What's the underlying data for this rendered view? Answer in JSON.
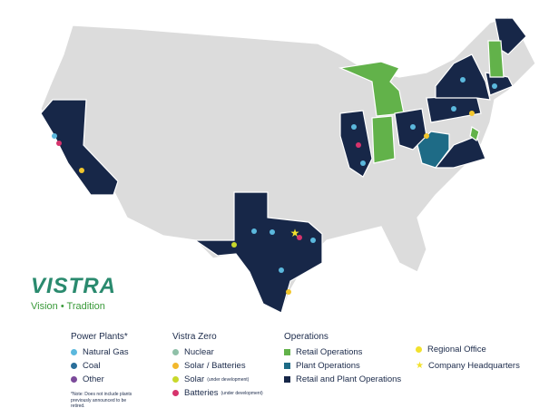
{
  "brand": {
    "name": "VISTRA",
    "tagline": "Vision • Tradition"
  },
  "legend": {
    "power_plants": {
      "title": "Power Plants*",
      "items": [
        "Natural Gas",
        "Coal",
        "Other"
      ],
      "note": "*Note: Does not include plants previously announced to be retired."
    },
    "vistra_zero": {
      "title": "Vistra Zero",
      "items": [
        {
          "label": "Nuclear"
        },
        {
          "label": "Solar / Batteries"
        },
        {
          "label": "Solar",
          "sublabel": "(under development)"
        },
        {
          "label": "Batteries",
          "sublabel": "(under development)"
        }
      ]
    },
    "operations": {
      "title": "Operations",
      "items": [
        "Retail Operations",
        "Plant Operations",
        "Retail and Plant Operations"
      ]
    },
    "other": {
      "items": [
        "Regional Office",
        "Company Headquarters"
      ]
    }
  }
}
